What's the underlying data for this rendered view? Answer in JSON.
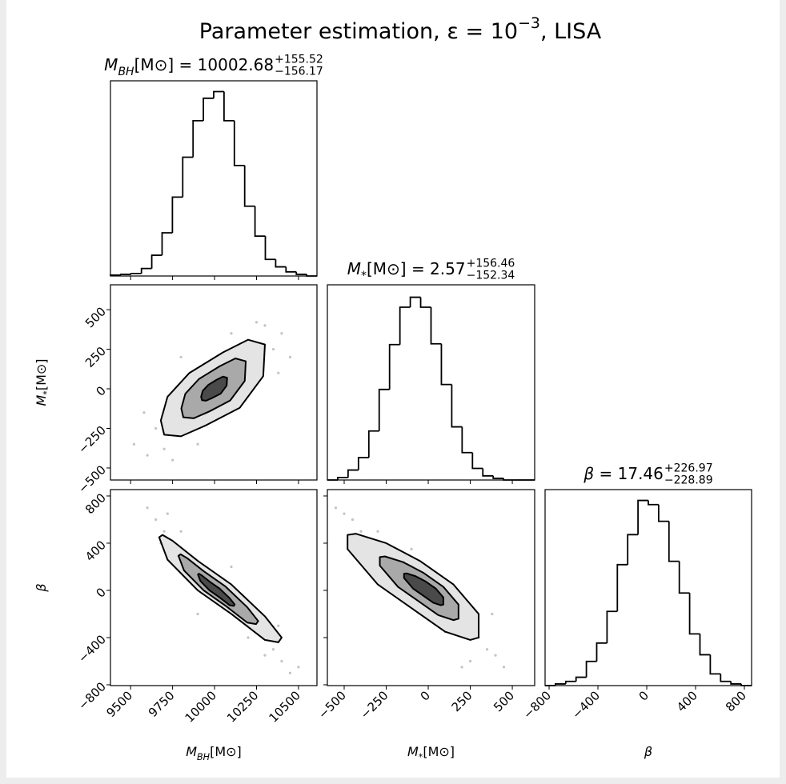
{
  "title": {
    "text": "Parameter estimation, ε = 10",
    "sup": "−3",
    "tail": ", LISA"
  },
  "chart_data": [
    {
      "type": "histogram",
      "title": {
        "base": "M",
        "sub": "BH",
        "text": "[M⊙] = 10002.68",
        "upper": "+155.52",
        "lower": "−156.17"
      },
      "bins": [
        9380,
        9441.5,
        9503,
        9564.5,
        9626,
        9687.5,
        9749,
        9810.5,
        9872,
        9933.5,
        9995,
        10056.5,
        10118,
        10179.5,
        10241,
        10302.5,
        10364,
        10425.5,
        10487,
        10548.5,
        10610
      ],
      "values": [
        1,
        2,
        3,
        9,
        25,
        52,
        95,
        143,
        187,
        214,
        222,
        187,
        133,
        84,
        48,
        20,
        11,
        5,
        2,
        0
      ],
      "xlim": [
        9380,
        10610
      ],
      "ylim": [
        0,
        235
      ],
      "xticks": [
        9500,
        9750,
        10000,
        10250,
        10500
      ]
    },
    {
      "type": "contour",
      "xlim": [
        9380,
        10610
      ],
      "ylim": [
        -576,
        657
      ],
      "xticks": [
        9500,
        9750,
        10000,
        10250,
        10500
      ],
      "yticks": [
        {
          "value": -500,
          "label": "−500"
        },
        {
          "value": -250,
          "label": "−250"
        },
        0,
        250,
        500
      ],
      "ylabel": {
        "base": "M",
        "sub": "*",
        "text": "[M⊙]"
      },
      "points": {
        "x": [
          9520,
          9600,
          9650,
          9700,
          10350,
          10400,
          10300,
          10450,
          9750,
          10250,
          9580,
          10380,
          9900,
          10100,
          9800
        ],
        "y": [
          -350,
          -420,
          -250,
          -380,
          250,
          350,
          400,
          200,
          -450,
          420,
          -150,
          100,
          -350,
          350,
          200
        ]
      },
      "contours": [
        {
          "x": [
            9680,
            9700,
            9800,
            9950,
            10150,
            10290,
            10300,
            10200,
            10050,
            9850,
            9720
          ],
          "y": [
            -200,
            -290,
            -300,
            -230,
            -120,
            80,
            280,
            310,
            230,
            100,
            -50
          ]
        },
        {
          "x": [
            9802,
            9814,
            9876,
            9969,
            10093,
            10180,
            10186,
            10124,
            10031,
            9907,
            9826
          ],
          "y": [
            -124,
            -180,
            -186,
            -143,
            -74,
            50,
            174,
            192,
            143,
            62,
            -31
          ]
        },
        {
          "x": [
            9920,
            9925,
            9950,
            9988,
            10037,
            10072,
            10075,
            10050,
            10012,
            9963,
            9930
          ],
          "y": [
            -50,
            -72,
            -75,
            -57,
            -30,
            20,
            70,
            77,
            57,
            25,
            -12
          ]
        }
      ]
    },
    {
      "type": "histogram",
      "title": {
        "base": "M",
        "sub": "*",
        "text": "[M⊙] = 2.57",
        "upper": "+156.46",
        "lower": "−152.34"
      },
      "bins": [
        -600,
        -538.35,
        -476.7,
        -415.05,
        -353.4,
        -291.75,
        -230.1,
        -168.45,
        -106.8,
        -45.15,
        16.5,
        78.15,
        139.8,
        201.45,
        263.1,
        324.75,
        386.4,
        448.05,
        509.7,
        571.35,
        633
      ],
      "values": [
        0,
        3,
        12,
        27,
        59,
        109,
        163,
        208,
        220,
        208,
        164,
        115,
        64,
        33,
        14,
        5,
        2,
        0,
        0,
        0
      ],
      "xlim": [
        -600,
        633
      ],
      "ylim": [
        0,
        235
      ],
      "xticks": [
        {
          "value": -500,
          "label": "−500"
        },
        {
          "value": -250,
          "label": "−250"
        },
        0,
        250,
        500
      ]
    },
    {
      "type": "contour",
      "xlim": [
        9380,
        10610
      ],
      "ylim": [
        -807,
        854
      ],
      "xticks": [
        9500,
        9750,
        10000,
        10250,
        10500
      ],
      "yticks": [
        {
          "value": -800,
          "label": "−800"
        },
        {
          "value": -400,
          "label": "−400"
        },
        0,
        400,
        800
      ],
      "xlabel": {
        "base": "M",
        "sub": "BH",
        "text": "[M⊙]"
      },
      "ylabel": {
        "base": "β"
      },
      "points": {
        "x": [
          9600,
          9650,
          9700,
          9720,
          10350,
          10400,
          10450,
          10300,
          10500,
          9800,
          10200,
          9680,
          10380,
          9900,
          10100
        ],
        "y": [
          700,
          600,
          500,
          650,
          -500,
          -600,
          -700,
          -550,
          -650,
          500,
          -400,
          400,
          -300,
          -200,
          200
        ]
      },
      "contours": [
        {
          "x": [
            9670,
            9690,
            9750,
            9900,
            10100,
            10300,
            10400,
            10380,
            10300,
            10100,
            9900,
            9720
          ],
          "y": [
            450,
            470,
            420,
            250,
            50,
            -220,
            -400,
            -440,
            -420,
            -200,
            0,
            260
          ]
        },
        {
          "x": [
            9785,
            9798,
            9837,
            9935,
            10065,
            10195,
            10260,
            10247,
            10195,
            10065,
            9935,
            9818
          ],
          "y": [
            293,
            306,
            273,
            163,
            33,
            -143,
            -260,
            -286,
            -273,
            -130,
            0,
            169
          ]
        },
        {
          "x": [
            9901,
            9907,
            9925,
            9970,
            10030,
            10090,
            10120,
            10114,
            10090,
            10030,
            9970,
            9916
          ],
          "y": [
            135,
            141,
            126,
            75,
            15,
            -66,
            -120,
            -132,
            -126,
            -60,
            0,
            78
          ]
        }
      ]
    },
    {
      "type": "contour",
      "xlim": [
        -600,
        633
      ],
      "ylim": [
        -807,
        854
      ],
      "xticks": [
        {
          "value": -500,
          "label": "−500"
        },
        {
          "value": -250,
          "label": "−250"
        },
        0,
        250,
        500
      ],
      "yticks": [
        {
          "value": -800,
          "label": "−800"
        },
        {
          "value": -400,
          "label": "−400"
        },
        0,
        400,
        800
      ],
      "xlabel": {
        "base": "M",
        "sub": "*",
        "text": "[M⊙]"
      },
      "points": {
        "x": [
          -550,
          -500,
          -450,
          -400,
          300,
          350,
          400,
          450,
          250,
          -300,
          200,
          -350,
          100,
          -100,
          380
        ],
        "y": [
          700,
          650,
          600,
          500,
          -400,
          -500,
          -550,
          -650,
          -600,
          500,
          -650,
          300,
          -350,
          350,
          -200
        ]
      },
      "contours": [
        {
          "x": [
            -480,
            -430,
            -250,
            -50,
            150,
            300,
            300,
            250,
            100,
            -100,
            -300,
            -480
          ],
          "y": [
            470,
            480,
            400,
            250,
            50,
            -200,
            -400,
            -420,
            -350,
            -150,
            50,
            350
          ]
        },
        {
          "x": [
            -288,
            -258,
            -150,
            -30,
            90,
            180,
            180,
            150,
            60,
            -60,
            -180,
            -288
          ],
          "y": [
            282,
            288,
            240,
            150,
            30,
            -120,
            -240,
            -252,
            -210,
            -90,
            30,
            210
          ]
        },
        {
          "x": [
            -144,
            -129,
            -75,
            -15,
            45,
            90,
            90,
            75,
            30,
            -30,
            -90,
            -144
          ],
          "y": [
            141,
            144,
            120,
            75,
            15,
            -60,
            -120,
            -126,
            -105,
            -45,
            15,
            105
          ]
        }
      ]
    },
    {
      "type": "histogram",
      "title": {
        "base": "β",
        "text": " = 17.46",
        "upper": "+226.97",
        "lower": "−228.89"
      },
      "bins": [
        -833,
        -748.4,
        -663.8,
        -579.2,
        -494.6,
        -410,
        -325.4,
        -240.8,
        -156.2,
        -71.6,
        13,
        97.6,
        182.2,
        266.8,
        351.4,
        436,
        520.6,
        605.2,
        689.8,
        774.4,
        859
      ],
      "values": [
        0,
        2,
        5,
        10,
        29,
        51,
        89,
        145,
        181,
        222,
        217,
        197,
        149,
        111,
        62,
        37,
        14,
        5,
        2,
        0
      ],
      "xlim": [
        -833,
        859
      ],
      "ylim": [
        0,
        235
      ],
      "xticks": [
        {
          "value": -800,
          "label": "−800"
        },
        {
          "value": -400,
          "label": "−400"
        },
        0,
        400,
        800
      ],
      "xlabel": {
        "base": "β"
      }
    }
  ]
}
